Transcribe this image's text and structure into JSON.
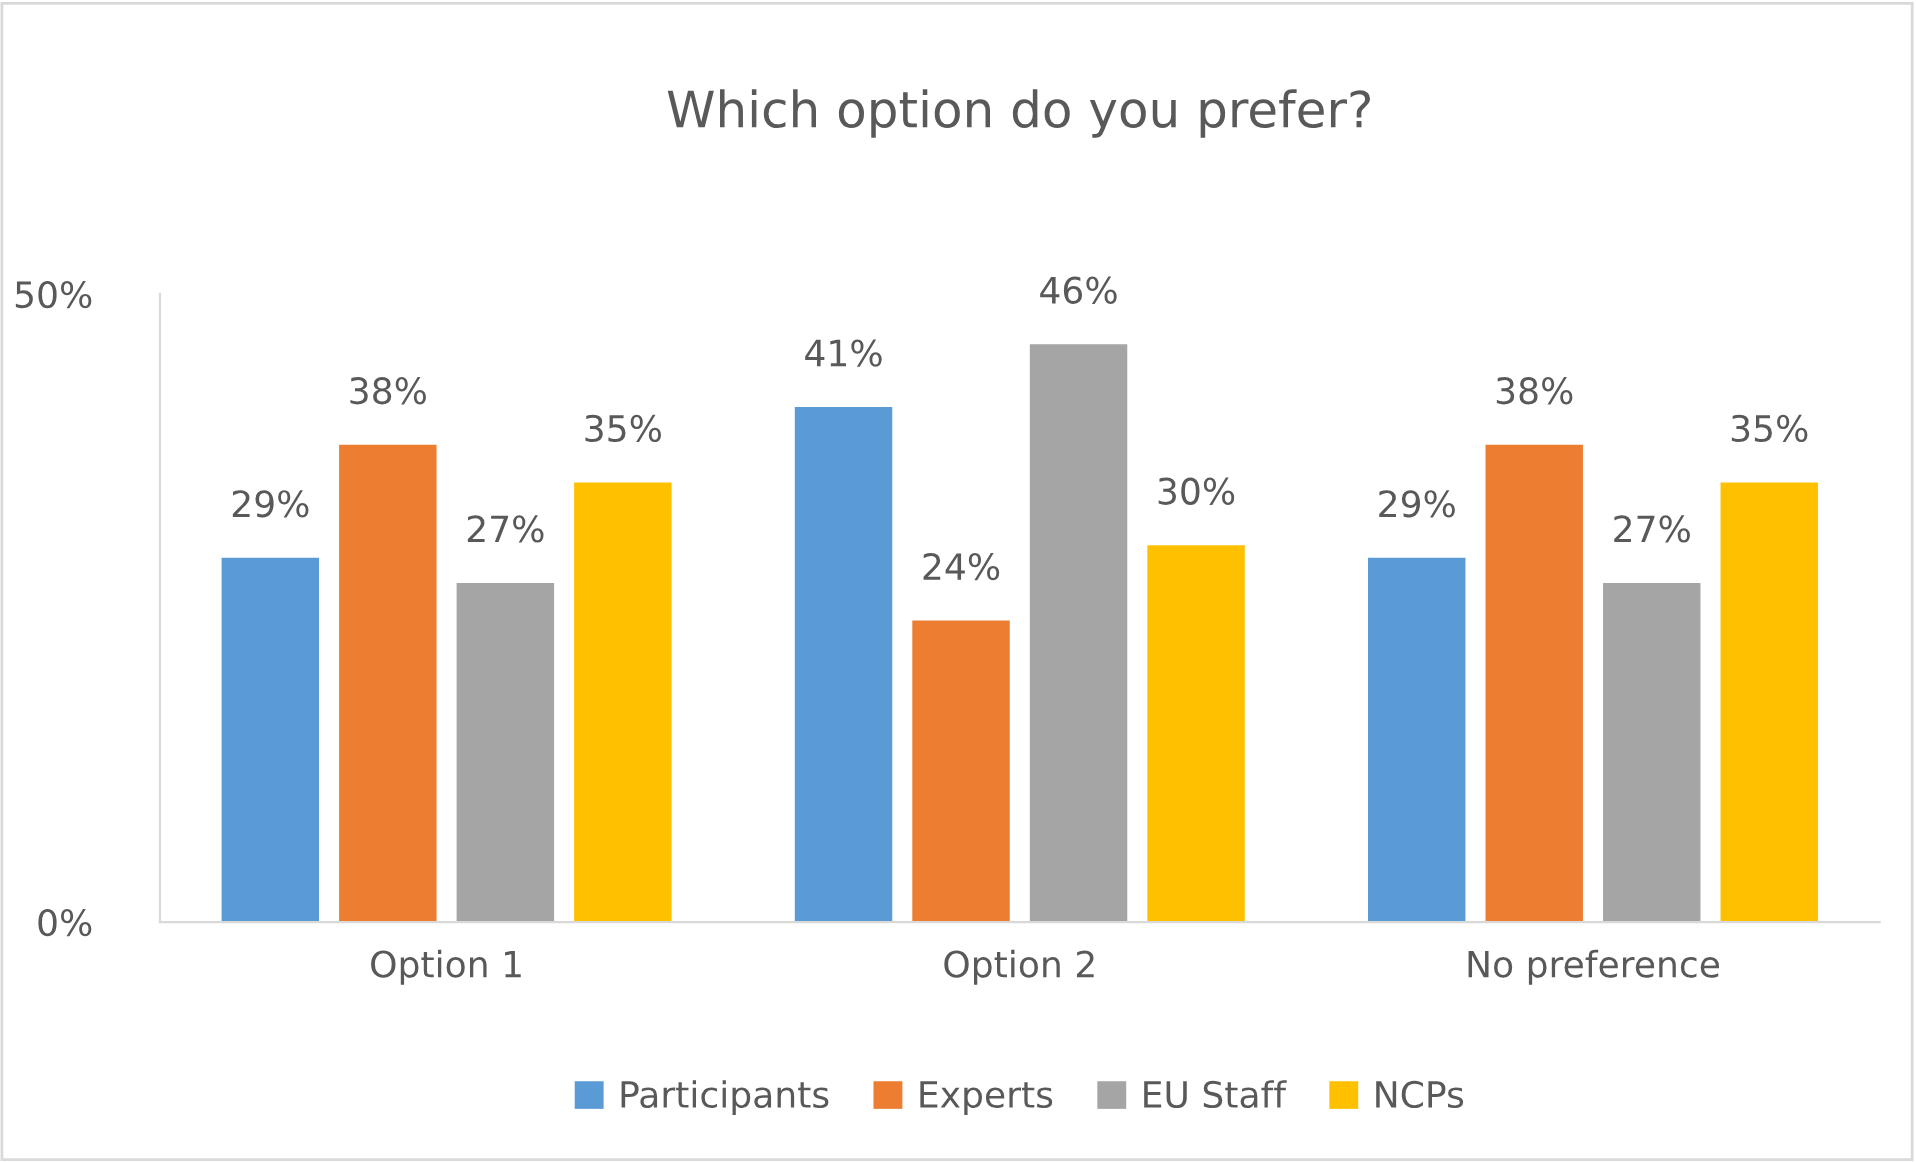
{
  "chart_data": {
    "type": "bar",
    "title": "Which option do you prefer?",
    "categories": [
      "Option 1",
      "Option 2",
      "No preference"
    ],
    "series": [
      {
        "name": "Participants",
        "color": "#5b9bd5",
        "values": [
          29,
          41,
          29
        ],
        "value_labels": [
          "29%",
          "41%",
          "29%"
        ]
      },
      {
        "name": "Experts",
        "color": "#ed7d31",
        "values": [
          38,
          24,
          38
        ],
        "value_labels": [
          "38%",
          "24%",
          "38%"
        ]
      },
      {
        "name": "EU Staff",
        "color": "#a5a5a5",
        "values": [
          27,
          46,
          27
        ],
        "value_labels": [
          "27%",
          "46%",
          "27%"
        ]
      },
      {
        "name": "NCPs",
        "color": "#ffc000",
        "values": [
          35,
          30,
          35
        ],
        "value_labels": [
          "35%",
          "30%",
          "35%"
        ]
      }
    ],
    "ylim": [
      0,
      50
    ],
    "yticks": [
      {
        "value": 0,
        "label": "0%"
      },
      {
        "value": 50,
        "label": "50%"
      }
    ],
    "grid": false,
    "legend": "bottom"
  }
}
